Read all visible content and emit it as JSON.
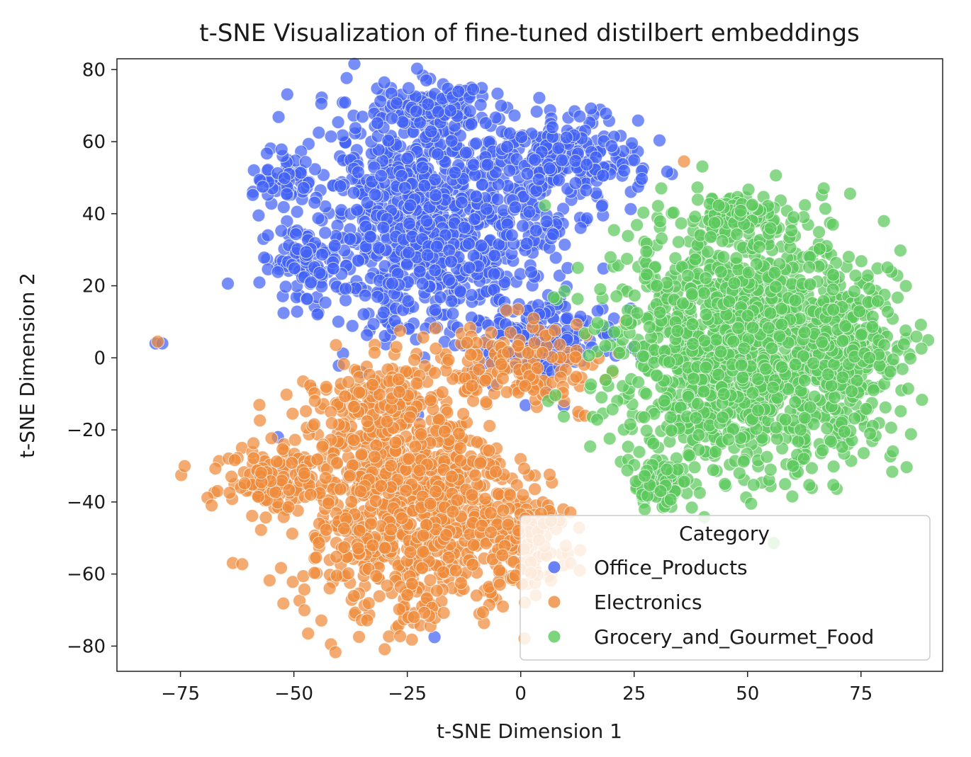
{
  "chart_data": {
    "type": "scatter",
    "title": "t-SNE Visualization of fine-tuned distilbert embeddings",
    "xlabel": "t-SNE Dimension 1",
    "ylabel": "t-SNE Dimension 2",
    "xlim": [
      -89,
      93
    ],
    "ylim": [
      -87,
      83
    ],
    "xticks": [
      -75,
      -50,
      -25,
      0,
      25,
      50,
      75
    ],
    "yticks": [
      80,
      60,
      40,
      20,
      0,
      -20,
      -40,
      -60,
      -80
    ],
    "xtick_labels": [
      "−75",
      "−50",
      "−25",
      "0",
      "25",
      "50",
      "75"
    ],
    "ytick_labels": [
      "80",
      "60",
      "40",
      "20",
      "0",
      "−20",
      "−40",
      "−60",
      "−80"
    ],
    "grid": false,
    "legend": {
      "title": "Category",
      "placement": "lower-right"
    },
    "series": [
      {
        "name": "Office_Products",
        "color": "#4363f5",
        "clusters": [
          {
            "cx": -20,
            "cy": 40,
            "sx": 13,
            "sy": 17,
            "n": 950
          },
          {
            "cx": 10,
            "cy": 55,
            "sx": 8,
            "sy": 6,
            "n": 220
          },
          {
            "cx": -52,
            "cy": 50,
            "sx": 3.5,
            "sy": 3,
            "n": 60
          },
          {
            "cx": -20,
            "cy": 70,
            "sx": 6,
            "sy": 3,
            "n": 90
          },
          {
            "cx": 5,
            "cy": 5,
            "sx": 8,
            "sy": 6,
            "n": 160
          },
          {
            "cx": -48,
            "cy": 25,
            "sx": 4,
            "sy": 5,
            "n": 80
          },
          {
            "cx": 7,
            "cy": 35,
            "sx": 2.5,
            "sy": 2.5,
            "n": 25
          }
        ],
        "points": [
          [
            -80.5,
            4
          ],
          [
            -79,
            4
          ],
          [
            -53.5,
            -22
          ],
          [
            -44.5,
            62.5
          ],
          [
            13,
            67
          ],
          [
            -10.5,
            74.5
          ],
          [
            -19,
            -77.5
          ]
        ]
      },
      {
        "name": "Electronics",
        "color": "#ee8a3a",
        "clusters": [
          {
            "cx": -25,
            "cy": -40,
            "sx": 12,
            "sy": 17,
            "n": 950
          },
          {
            "cx": -55,
            "cy": -33,
            "sx": 6,
            "sy": 5,
            "n": 130
          },
          {
            "cx": 0,
            "cy": -50,
            "sx": 5,
            "sy": 7,
            "n": 130
          },
          {
            "cx": 0,
            "cy": -2,
            "sx": 10,
            "sy": 6,
            "n": 150
          },
          {
            "cx": -35,
            "cy": -12,
            "sx": 6,
            "sy": 5,
            "n": 80
          }
        ],
        "points": [
          [
            -80,
            4.5
          ],
          [
            36,
            54.5
          ],
          [
            11,
            -57
          ],
          [
            13,
            -59
          ]
        ]
      },
      {
        "name": "Grocery_and_Gourmet_Food",
        "color": "#5bc95b",
        "clusters": [
          {
            "cx": 50,
            "cy": 3,
            "sx": 15,
            "sy": 16,
            "n": 1500
          },
          {
            "cx": 48,
            "cy": 38,
            "sx": 5,
            "sy": 3.5,
            "n": 100
          },
          {
            "cx": 31,
            "cy": -35,
            "sx": 3,
            "sy": 3.5,
            "n": 80
          },
          {
            "cx": 73,
            "cy": 5,
            "sx": 5,
            "sy": 8,
            "n": 150
          }
        ],
        "points": [
          [
            30,
            20
          ],
          [
            45,
            -35
          ],
          [
            60,
            -30
          ],
          [
            77,
            -21
          ]
        ]
      }
    ]
  }
}
